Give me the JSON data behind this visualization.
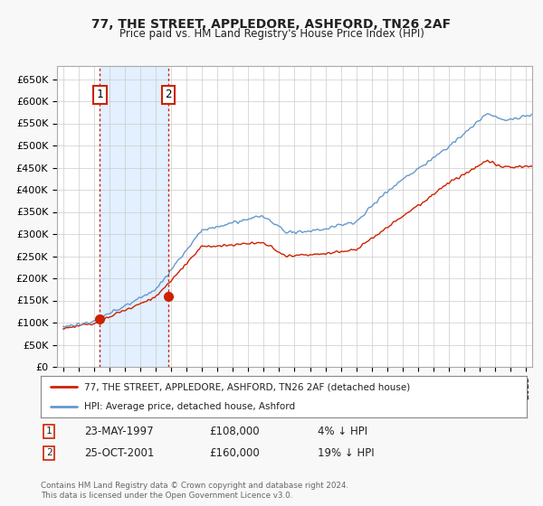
{
  "title": "77, THE STREET, APPLEDORE, ASHFORD, TN26 2AF",
  "subtitle": "Price paid vs. HM Land Registry's House Price Index (HPI)",
  "ylim": [
    0,
    680000
  ],
  "yticks": [
    0,
    50000,
    100000,
    150000,
    200000,
    250000,
    300000,
    350000,
    400000,
    450000,
    500000,
    550000,
    600000,
    650000
  ],
  "ytick_labels": [
    "£0",
    "£50K",
    "£100K",
    "£150K",
    "£200K",
    "£250K",
    "£300K",
    "£350K",
    "£400K",
    "£450K",
    "£500K",
    "£550K",
    "£600K",
    "£650K"
  ],
  "xlim_start": 1994.6,
  "xlim_end": 2025.4,
  "transaction1": {
    "year": 1997.38,
    "price": 108000,
    "label": "1",
    "date": "23-MAY-1997",
    "pct": "4%"
  },
  "transaction2": {
    "year": 2001.81,
    "price": 160000,
    "label": "2",
    "date": "25-OCT-2001",
    "pct": "19%"
  },
  "line_red_color": "#cc2200",
  "line_blue_color": "#6699cc",
  "vline_color": "#cc2200",
  "shade_color": "#ddeeff",
  "legend_entries": [
    "77, THE STREET, APPLEDORE, ASHFORD, TN26 2AF (detached house)",
    "HPI: Average price, detached house, Ashford"
  ],
  "table_rows": [
    {
      "num": "1",
      "date": "23-MAY-1997",
      "price": "£108,000",
      "pct": "4% ↓ HPI"
    },
    {
      "num": "2",
      "date": "25-OCT-2001",
      "price": "£160,000",
      "pct": "19% ↓ HPI"
    }
  ],
  "footer": "Contains HM Land Registry data © Crown copyright and database right 2024.\nThis data is licensed under the Open Government Licence v3.0.",
  "fig_bg_color": "#f8f8f8",
  "plot_bg_color": "#ffffff"
}
